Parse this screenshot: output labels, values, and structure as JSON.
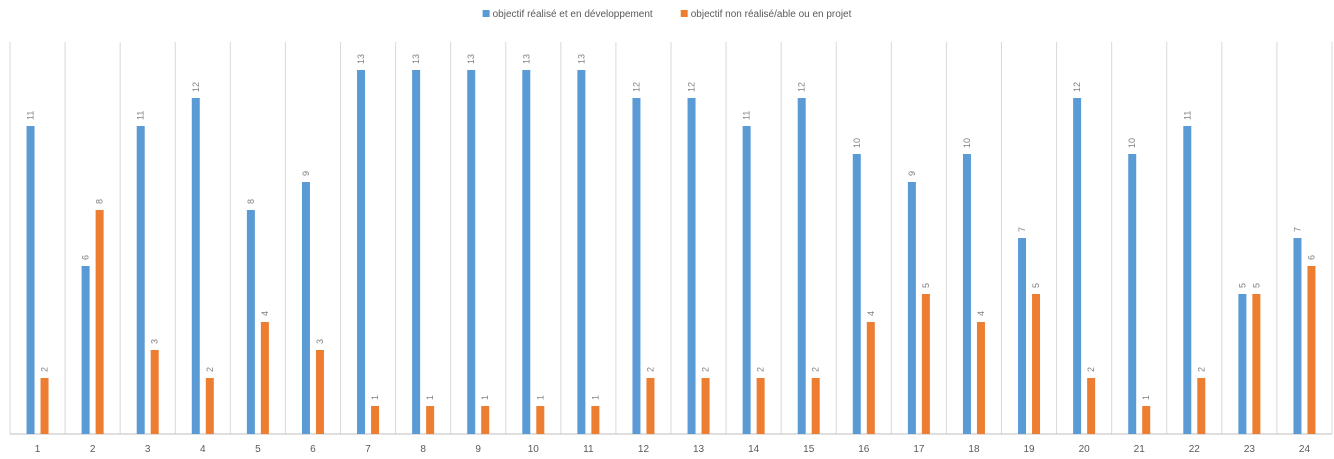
{
  "chart_data": {
    "type": "bar",
    "categories": [
      "1",
      "2",
      "3",
      "4",
      "5",
      "6",
      "7",
      "8",
      "9",
      "10",
      "11",
      "12",
      "13",
      "14",
      "15",
      "16",
      "17",
      "18",
      "19",
      "20",
      "21",
      "22",
      "23",
      "24"
    ],
    "series": [
      {
        "name": "objectif réalisé et en développement",
        "color": "#5B9BD5",
        "values": [
          11,
          6,
          11,
          12,
          8,
          9,
          13,
          13,
          13,
          13,
          13,
          12,
          12,
          11,
          12,
          10,
          9,
          10,
          7,
          12,
          10,
          11,
          5,
          7
        ]
      },
      {
        "name": "objectif non réalisé/able ou en projet",
        "color": "#ED7D31",
        "values": [
          2,
          8,
          3,
          2,
          4,
          3,
          1,
          1,
          1,
          1,
          1,
          2,
          2,
          2,
          2,
          4,
          5,
          4,
          5,
          2,
          1,
          2,
          5,
          6
        ]
      }
    ],
    "title": "",
    "xlabel": "",
    "ylabel": "",
    "ylim": [
      0,
      14
    ],
    "grid": "vertical",
    "legend": "top-center",
    "data_labels": true
  },
  "colors": {
    "grid": "#D9D9D9",
    "axis": "#BFBFBF",
    "label_text": "#595959",
    "data_label_text": "#7F7F7F"
  }
}
